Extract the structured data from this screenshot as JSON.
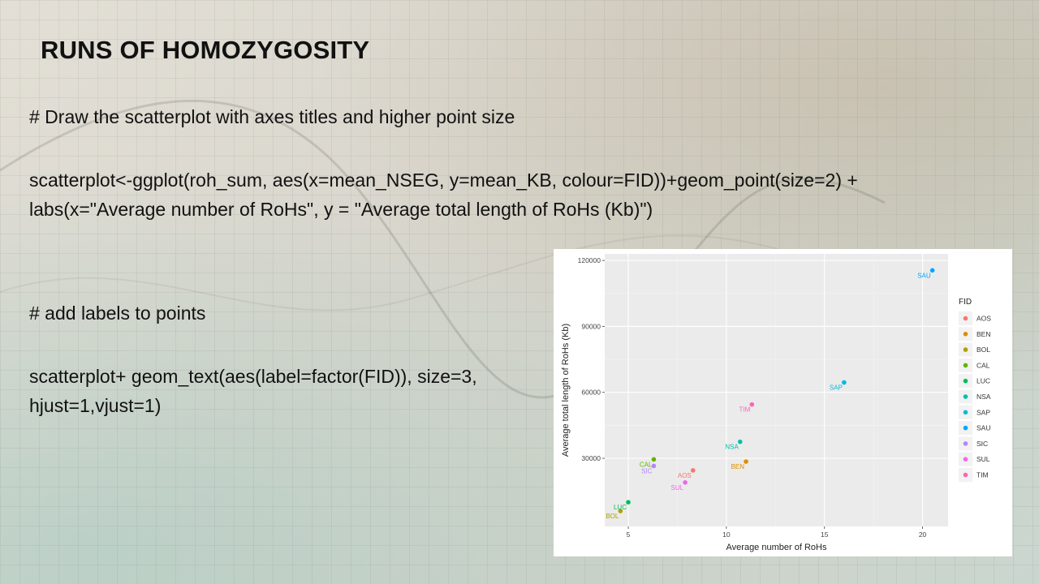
{
  "slide": {
    "title": "RUNS OF HOMOZYGOSITY",
    "comment1": "# Draw the scatterplot with axes titles and higher point size",
    "code1": "scatterplot<-ggplot(roh_sum, aes(x=mean_NSEG, y=mean_KB, colour=FID))+geom_point(size=2) + labs(x=\"Average number of RoHs\", y = \"Average total length of RoHs (Kb)\")",
    "comment2": "# add labels to points",
    "code2": "scatterplot+ geom_text(aes(label=factor(FID)), size=3, hjust=1,vjust=1)"
  },
  "chart_data": {
    "type": "scatter",
    "xlabel": "Average number of RoHs",
    "ylabel": "Average total length of RoHs (Kb)",
    "xlim": [
      3.8,
      21.3
    ],
    "ylim": [
      -1000,
      123000
    ],
    "xticks": [
      5,
      10,
      15,
      20
    ],
    "yticks": [
      30000,
      60000,
      90000,
      120000
    ],
    "legend_title": "FID",
    "legend_position": "right",
    "grid": true,
    "point_labels": true,
    "series": [
      {
        "name": "AOS",
        "color": "#F8766D",
        "x": 8.3,
        "y": 24500
      },
      {
        "name": "BEN",
        "color": "#DB8E00",
        "x": 11.0,
        "y": 28500
      },
      {
        "name": "BOL",
        "color": "#AEA200",
        "x": 4.6,
        "y": 6000
      },
      {
        "name": "CAL",
        "color": "#64B200",
        "x": 6.3,
        "y": 29500
      },
      {
        "name": "LUC",
        "color": "#00BD5C",
        "x": 5.0,
        "y": 10000
      },
      {
        "name": "NSA",
        "color": "#00C1A7",
        "x": 10.7,
        "y": 37500
      },
      {
        "name": "SAP",
        "color": "#00BADE",
        "x": 16.0,
        "y": 64500
      },
      {
        "name": "SAU",
        "color": "#00A6FF",
        "x": 20.5,
        "y": 115500
      },
      {
        "name": "SIC",
        "color": "#B385FF",
        "x": 6.3,
        "y": 26500
      },
      {
        "name": "SUL",
        "color": "#EF67EB",
        "x": 7.9,
        "y": 19000
      },
      {
        "name": "TIM",
        "color": "#FF63B6",
        "x": 11.3,
        "y": 54500
      }
    ]
  }
}
